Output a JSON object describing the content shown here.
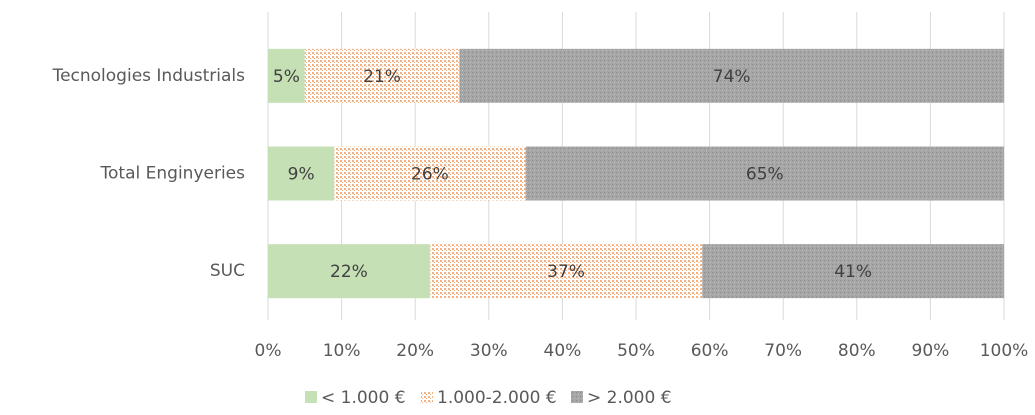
{
  "chart_data": {
    "type": "stacked_barh",
    "categories": [
      "Tecnologies Industrials",
      "Total Enginyeries",
      "SUC"
    ],
    "series": [
      {
        "name": "< 1.000 €",
        "color": "#c5e0b4",
        "pattern": "solid",
        "values": [
          5,
          9,
          22
        ],
        "value_labels": [
          "5%",
          "9%",
          "22%"
        ]
      },
      {
        "name": "1.000-2.000 €",
        "color": "#f4b183",
        "pattern": "dots",
        "values": [
          21,
          26,
          37
        ],
        "value_labels": [
          "21%",
          "26%",
          "37%"
        ]
      },
      {
        "name": "> 2.000 €",
        "color": "#a6a6a6",
        "pattern": "dense",
        "values": [
          74,
          65,
          41
        ],
        "value_labels": [
          "74%",
          "65%",
          "41%"
        ]
      }
    ],
    "xlim": [
      0,
      100
    ],
    "xticks": [
      {
        "value": 0,
        "label": "0%"
      },
      {
        "value": 10,
        "label": "10%"
      },
      {
        "value": 20,
        "label": "20%"
      },
      {
        "value": 30,
        "label": "30%"
      },
      {
        "value": 40,
        "label": "40%"
      },
      {
        "value": 50,
        "label": "50%"
      },
      {
        "value": 60,
        "label": "60%"
      },
      {
        "value": 70,
        "label": "70%"
      },
      {
        "value": 80,
        "label": "80%"
      },
      {
        "value": 90,
        "label": "90%"
      },
      {
        "value": 100,
        "label": "100%"
      }
    ],
    "grid": true,
    "legend": "bottom"
  }
}
